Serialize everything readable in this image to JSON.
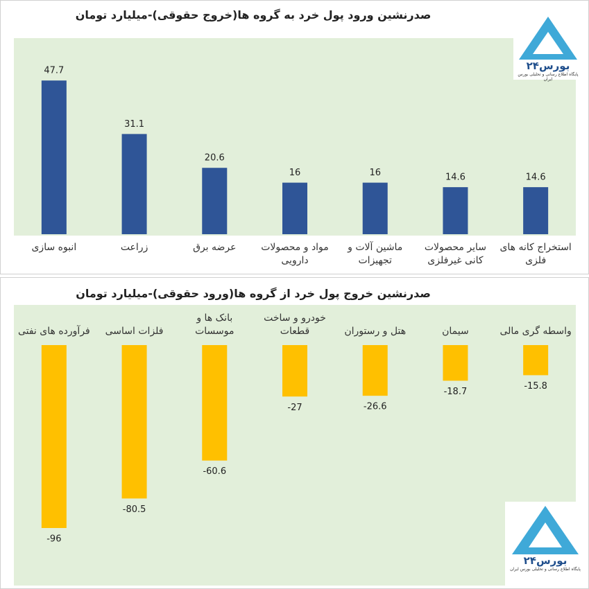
{
  "chart_data": [
    {
      "type": "bar",
      "title": "صدرنشین ورود پول خرد به گروه ها(خروج حقوقی)-میلیارد تومان",
      "categories": [
        "انبوه سازی",
        "زراعت",
        "عرضه برق",
        "مواد و محصولات دارویی",
        "ماشین آلات و تجهیزات",
        "سایر محصولات کانی غیرفلزی",
        "استخراج کانه های فلزی"
      ],
      "values": [
        47.7,
        31.1,
        20.6,
        16,
        16,
        14.6,
        14.6
      ],
      "color": "#2f5597",
      "ylim": [
        0,
        60
      ]
    },
    {
      "type": "bar",
      "title": "صدرنشین خروج پول خرد از گروه ها(ورود حقوقی)-میلیارد تومان",
      "categories": [
        "فرآورده های نفتی",
        "فلزات اساسی",
        "بانک ها و موسسات",
        "خودرو و ساخت قطعات",
        "هتل و رستوران",
        "سیمان",
        "واسطه گری مالی"
      ],
      "values": [
        -96,
        -80.5,
        -60.6,
        -27,
        -26.6,
        -18.7,
        -15.8
      ],
      "color": "#ffc000",
      "ylim": [
        -100,
        0
      ]
    }
  ],
  "logo": {
    "name": "بورس۲۴",
    "tagline": "پایگاه اطلاع رسانی و تحلیلی بورس ایران"
  }
}
